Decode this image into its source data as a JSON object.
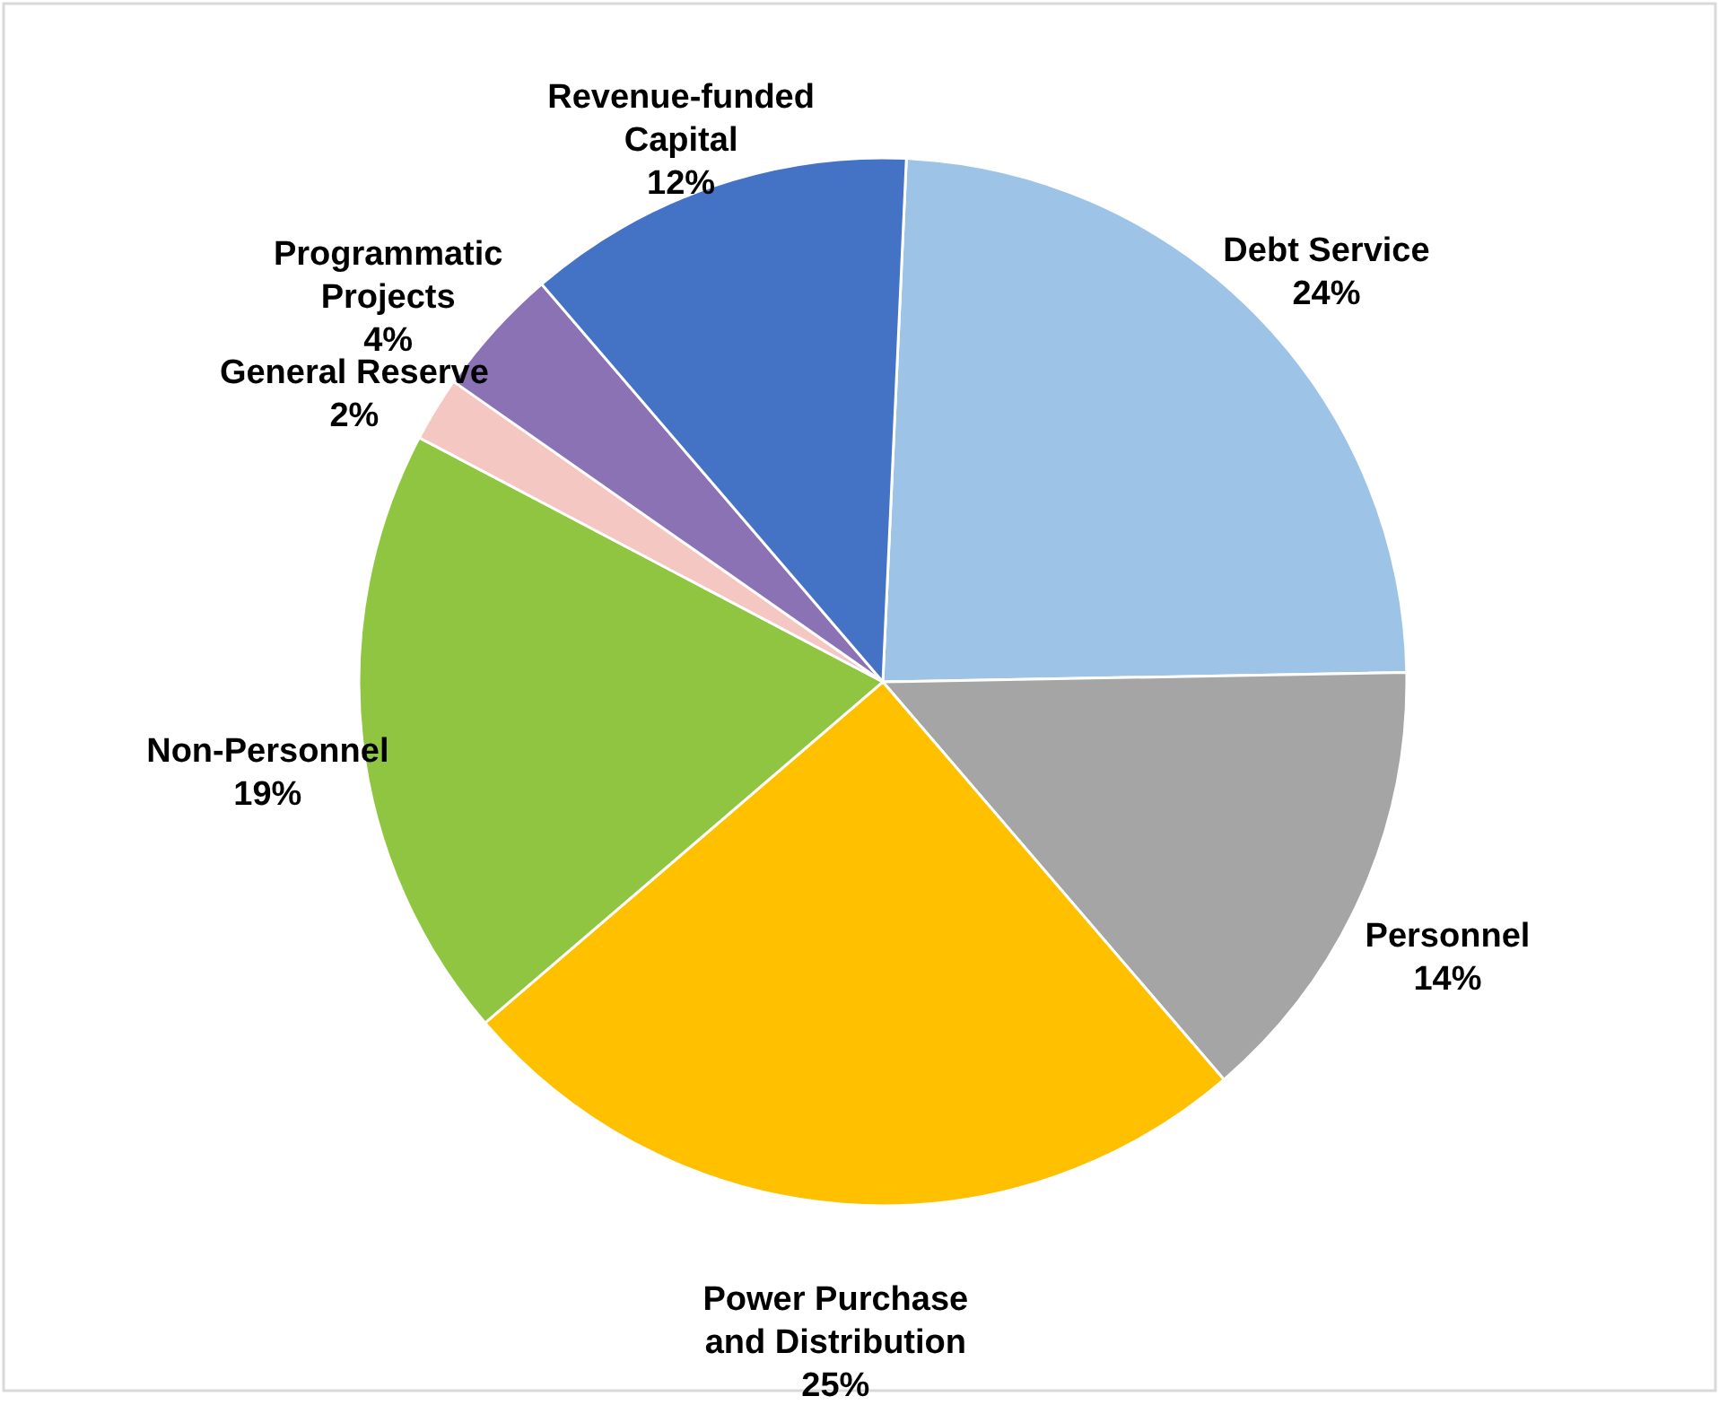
{
  "chart_data": {
    "type": "pie",
    "categories": [
      "Debt Service",
      "Personnel",
      "Power Purchase and Distribution",
      "Non-Personnel",
      "General Reserve",
      "Programmatic Projects",
      "Revenue-funded Capital"
    ],
    "values": [
      24,
      14,
      25,
      19,
      2,
      4,
      12
    ],
    "value_labels": [
      "24%",
      "14%",
      "25%",
      "19%",
      "2%",
      "4%",
      "12%"
    ],
    "colors": [
      "#9dc3e6",
      "#a5a5a5",
      "#ffc000",
      "#8fc540",
      "#f4c7c3",
      "#8a72b4",
      "#4472c4"
    ]
  }
}
